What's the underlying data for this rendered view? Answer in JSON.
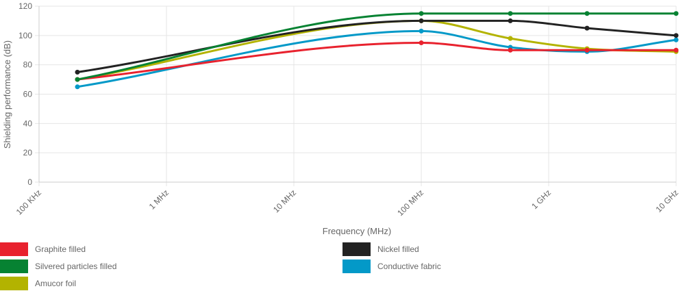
{
  "chart_data": {
    "type": "line",
    "xlabel": "Frequency (MHz)",
    "ylabel": "Shielding performance (dB)",
    "x_scale": "log",
    "x_ticks": [
      {
        "value": 0.1,
        "label": "100 KHz"
      },
      {
        "value": 1,
        "label": "1 MHz"
      },
      {
        "value": 10,
        "label": "10 MHz"
      },
      {
        "value": 100,
        "label": "100 MHz"
      },
      {
        "value": 1000,
        "label": "1 GHz"
      },
      {
        "value": 10000,
        "label": "10 GHz"
      }
    ],
    "y_ticks": [
      "0",
      "20",
      "40",
      "60",
      "80",
      "100",
      "120"
    ],
    "ylim": [
      0,
      120
    ],
    "xlim": [
      0.1,
      10000
    ],
    "grid": true,
    "legend_position": "bottom",
    "series": [
      {
        "name": "Graphite filled",
        "color": "#e8222e",
        "x": [
          0.2,
          100,
          500,
          2000,
          10000
        ],
        "values": [
          70,
          95,
          90,
          90,
          90
        ]
      },
      {
        "name": "Nickel filled",
        "color": "#222222",
        "x": [
          0.2,
          100,
          500,
          2000,
          10000
        ],
        "values": [
          75,
          110,
          110,
          105,
          100
        ]
      },
      {
        "name": "Silvered particles filled",
        "color": "#068232",
        "x": [
          0.2,
          100,
          500,
          2000,
          10000
        ],
        "values": [
          70,
          115,
          115,
          115,
          115
        ]
      },
      {
        "name": "Conductive fabric",
        "color": "#0399c8",
        "x": [
          0.2,
          100,
          500,
          2000,
          10000
        ],
        "values": [
          65,
          103,
          92,
          89,
          97
        ]
      },
      {
        "name": "Amucor foil",
        "color": "#b3b300",
        "x": [
          0.2,
          100,
          500,
          2000,
          10000
        ],
        "values": [
          70,
          110,
          98,
          91,
          89
        ]
      }
    ]
  }
}
